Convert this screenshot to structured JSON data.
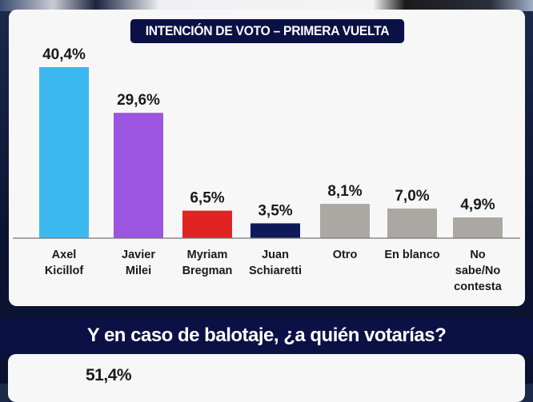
{
  "chart_data": {
    "type": "bar",
    "title": "INTENCIÓN DE VOTO – PRIMERA VUELTA",
    "categories": [
      [
        "Axel",
        "Kicillof"
      ],
      [
        "Javier",
        "Milei"
      ],
      [
        "Myriam",
        "Bregman"
      ],
      [
        "Juan",
        "Schiaretti"
      ],
      [
        "Otro"
      ],
      [
        "En blanco"
      ],
      [
        "No",
        "sabe/No",
        "contesta"
      ]
    ],
    "values": [
      40.4,
      29.6,
      6.5,
      3.5,
      8.1,
      7.0,
      4.9
    ],
    "value_labels": [
      "40,4%",
      "29,6%",
      "6,5%",
      "3,5%",
      "8,1%",
      "7,0%",
      "4,9%"
    ],
    "colors": [
      "#3bb8ee",
      "#9b55e0",
      "#e02323",
      "#0e1a5c",
      "#aba8a3",
      "#aba8a3",
      "#aba8a3"
    ],
    "ylim": [
      0,
      42
    ],
    "xlabel": "",
    "ylabel": "",
    "grid": false
  },
  "second_section": {
    "question": "Y en caso de balotaje, ¿a quién votarías?",
    "first_value_label": "51,4%"
  }
}
